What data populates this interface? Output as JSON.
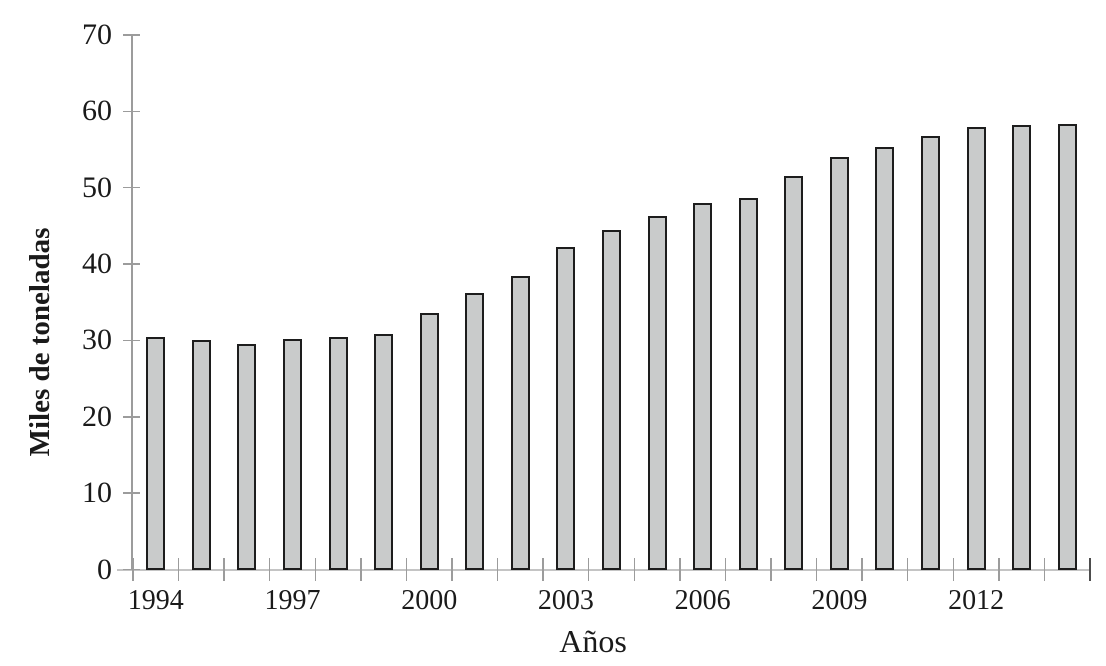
{
  "chart_data": {
    "type": "bar",
    "title": "",
    "xlabel": "Años",
    "ylabel": "Miles de toneladas",
    "categories": [
      1994,
      1995,
      1996,
      1997,
      1998,
      1999,
      2000,
      2001,
      2002,
      2003,
      2004,
      2005,
      2006,
      2007,
      2008,
      2009,
      2010,
      2011,
      2012,
      2013,
      2014
    ],
    "values": [
      30.4,
      30.0,
      29.5,
      30.2,
      30.5,
      30.9,
      33.6,
      36.2,
      38.4,
      42.3,
      44.5,
      46.3,
      48.0,
      48.7,
      51.5,
      54.0,
      55.3,
      56.8,
      58.0,
      58.2,
      58.4
    ],
    "ylim": [
      0,
      70
    ],
    "yticks": [
      0,
      10,
      20,
      30,
      40,
      50,
      60,
      70
    ],
    "xtick_labels": [
      "1994",
      "1997",
      "2000",
      "2003",
      "2006",
      "2009",
      "2012"
    ],
    "xtick_label_every": 3,
    "grid": false,
    "legend": "none",
    "colors": {
      "bar_fill": "#c9cbcb",
      "bar_border": "#1d1d1d",
      "axis_line": "#c4c4c4",
      "y_axis_line": "#9c9c9c",
      "tick": "#9c9c9c",
      "end_tick": "#4d4d4d",
      "text": "#1a1a1a",
      "background": "#ffffff"
    }
  }
}
